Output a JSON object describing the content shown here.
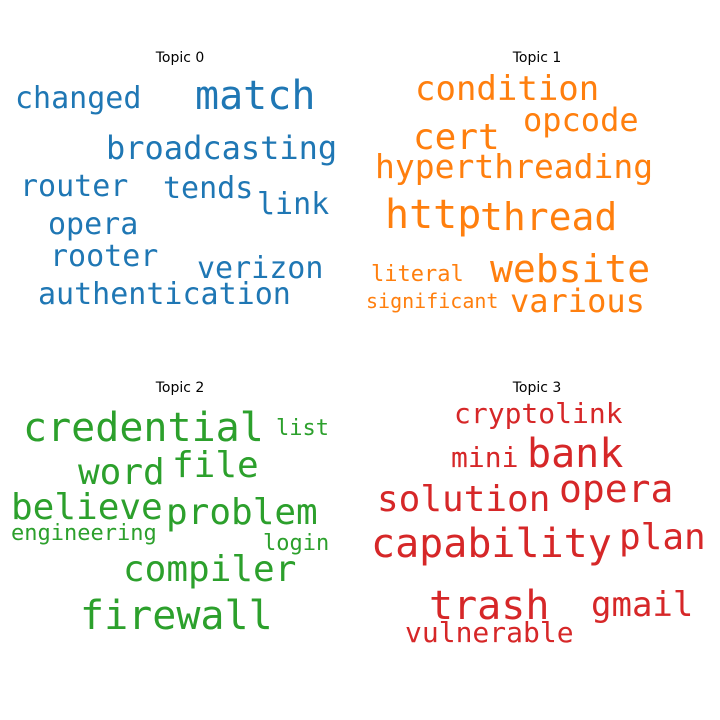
{
  "colors": {
    "topic0": "#1f77b4",
    "topic1": "#ff7f0e",
    "topic2": "#2ca02c",
    "topic3": "#d62728"
  },
  "topics": [
    {
      "title": "Topic 0",
      "words": [
        "match",
        "changed",
        "broadcasting",
        "router",
        "tends",
        "link",
        "opera",
        "rooter",
        "verizon",
        "authentication"
      ]
    },
    {
      "title": "Topic 1",
      "words": [
        "condition",
        "opcode",
        "cert",
        "hyperthreading",
        "http",
        "thread",
        "website",
        "literal",
        "significant",
        "various"
      ]
    },
    {
      "title": "Topic 2",
      "words": [
        "credential",
        "list",
        "word",
        "file",
        "believe",
        "problem",
        "engineering",
        "login",
        "compiler",
        "firewall"
      ]
    },
    {
      "title": "Topic 3",
      "words": [
        "cryptolink",
        "mini",
        "bank",
        "opera",
        "solution",
        "capability",
        "plan",
        "trash",
        "gmail",
        "vulnerable"
      ]
    }
  ]
}
